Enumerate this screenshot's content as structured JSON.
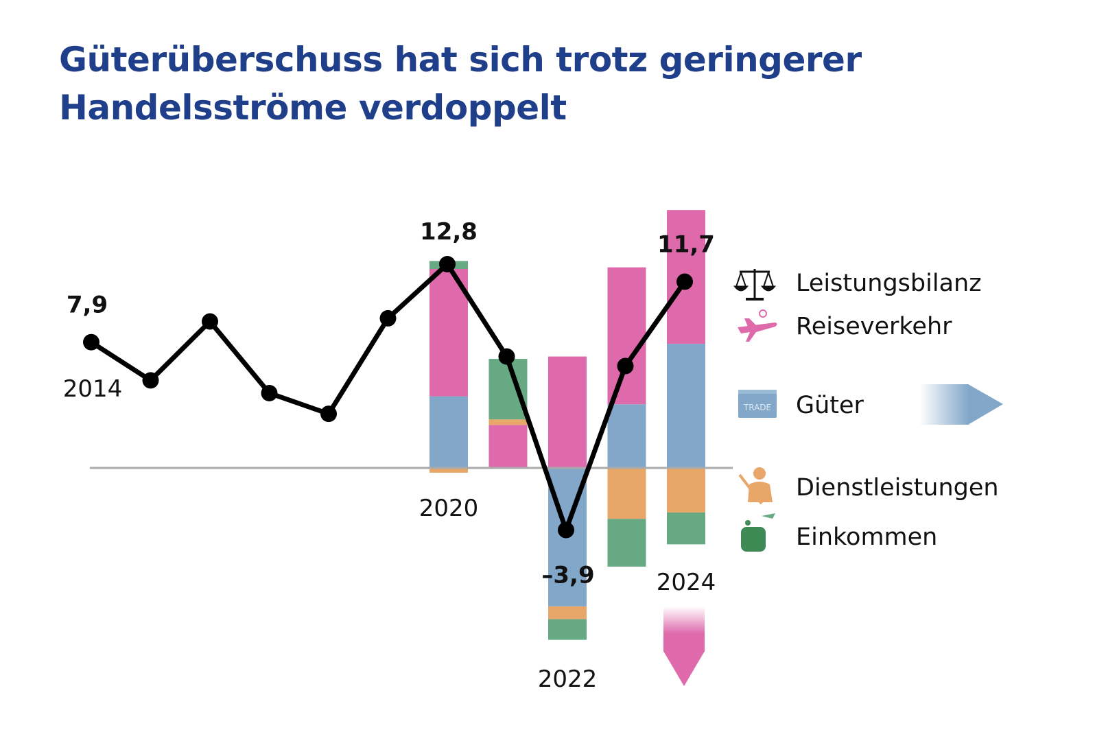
{
  "title": "Güterüberschuss hat sich trotz geringerer Handels­ströme verdoppelt",
  "chart_data": {
    "type": "line+stacked-bar",
    "title": "Güterüberschuss hat sich trotz geringerer Handels­ströme verdoppelt",
    "xlabel": "",
    "ylabel": "",
    "grid": false,
    "legend_position": "right",
    "zero_line": true,
    "line": {
      "name": "Leistungsbilanz",
      "color": "#000000",
      "x": [
        2014,
        2015,
        2016,
        2017,
        2018,
        2019,
        2020,
        2021,
        2022,
        2023,
        2024
      ],
      "values": [
        7.9,
        5.5,
        9.2,
        4.7,
        3.4,
        9.4,
        12.8,
        7.0,
        -3.9,
        6.4,
        11.7
      ]
    },
    "value_labels": [
      {
        "x": 2014,
        "text": "7,9"
      },
      {
        "x": 2020,
        "text": "12,8"
      },
      {
        "x": 2022,
        "text": "–3,9"
      },
      {
        "x": 2024,
        "text": "11,7"
      }
    ],
    "year_labels": [
      {
        "x": 2014,
        "text": "2014"
      },
      {
        "x": 2020,
        "text": "2020"
      },
      {
        "x": 2022,
        "text": "2022"
      },
      {
        "x": 2024,
        "text": "2024"
      }
    ],
    "bars": {
      "categories": [
        2020,
        2021,
        2022,
        2023,
        2024
      ],
      "series": [
        {
          "name": "Güter",
          "color": "#83a7c9",
          "values": [
            4.5,
            0,
            -8.7,
            4.0,
            7.8
          ]
        },
        {
          "name": "Reiseverkehr",
          "color": "#de6aac",
          "values": [
            8.0,
            2.7,
            7.0,
            8.6,
            8.4
          ]
        },
        {
          "name": "Dienstleistungen",
          "color": "#e8a769",
          "values": [
            -0.3,
            0.35,
            -0.8,
            -3.2,
            -2.8
          ]
        },
        {
          "name": "Einkommen",
          "color": "#66a982",
          "values": [
            0.5,
            3.8,
            -1.3,
            -3.0,
            -2.0
          ]
        }
      ]
    }
  },
  "legend": [
    {
      "label": "Leistungsbilanz",
      "icon": "scales-icon"
    },
    {
      "label": "Reiseverkehr",
      "icon": "airplane-icon"
    },
    {
      "label": "Güter",
      "icon": "trade-box-icon",
      "box_text": "TRADE"
    },
    {
      "label": "Dienstleistungen",
      "icon": "worker-icon"
    },
    {
      "label": "Einkommen",
      "icon": "coins-icon"
    }
  ]
}
